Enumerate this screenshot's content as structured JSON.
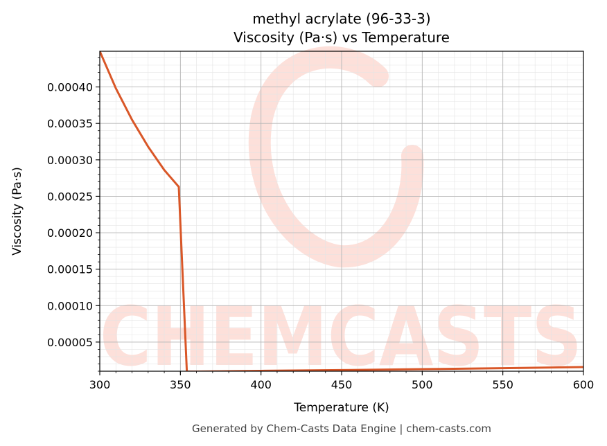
{
  "chart_data": {
    "type": "line",
    "title": "methyl acrylate (96-33-3)",
    "subtitle": "Viscosity (Pa·s) vs Temperature",
    "xlabel": "Temperature (K)",
    "ylabel": "Viscosity (Pa·s)",
    "xlim": [
      300,
      600
    ],
    "ylim": [
      1e-05,
      0.000449
    ],
    "x_ticks": [
      300,
      350,
      400,
      450,
      500,
      550,
      600
    ],
    "x_tick_labels": [
      "300",
      "350",
      "400",
      "450",
      "500",
      "550",
      "600"
    ],
    "y_ticks": [
      5e-05,
      0.0001,
      0.00015,
      0.0002,
      0.00025,
      0.0003,
      0.00035,
      0.0004
    ],
    "y_tick_labels": [
      "0.00005",
      "0.00010",
      "0.00015",
      "0.00020",
      "0.00025",
      "0.00030",
      "0.00035",
      "0.00040"
    ],
    "grid": true,
    "line_color": "#d95728",
    "series": [
      {
        "x": [
          300,
          310,
          320,
          330,
          340,
          349,
          354,
          360,
          400,
          450,
          500,
          550,
          600
        ],
        "values": [
          0.000449,
          0.000398,
          0.000355,
          0.000318,
          0.000286,
          0.000263,
          9.5e-06,
          9.5e-06,
          1.05e-05,
          1.15e-05,
          1.28e-05,
          1.42e-05,
          1.57e-05
        ]
      }
    ]
  },
  "watermark": {
    "text": "CHEMCASTS",
    "color": "#fde0da"
  },
  "footer": "Generated by Chem-Casts Data Engine | chem-casts.com"
}
